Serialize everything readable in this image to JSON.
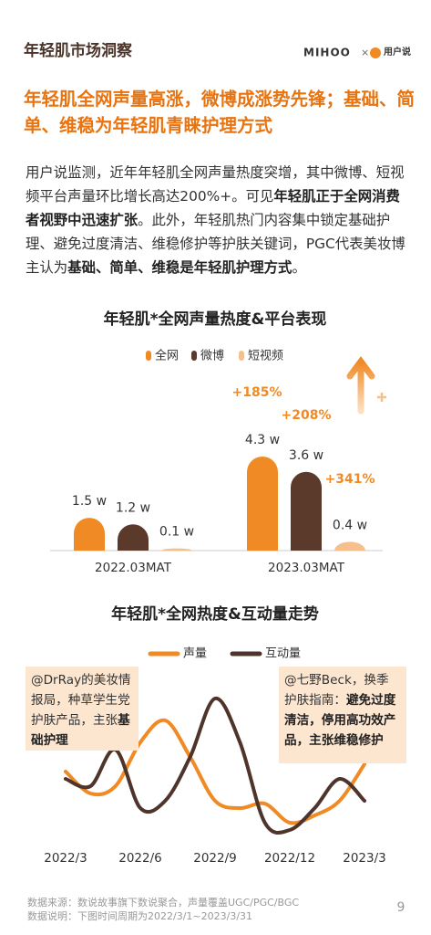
{
  "header": {
    "title": "年轻肌市场洞察",
    "brand": "MIHOO",
    "separator": "×",
    "partner": "用户说"
  },
  "headline": "年轻肌全网声量高涨，微博成涨势先锋；基础、简单、维稳为年轻肌青睐护理方式",
  "body": {
    "segments": [
      {
        "text": "用户说监测，近年年轻肌全网声量热度突增，其中微博、短视频平台声量环比增长高达200%+。可见",
        "bold": false
      },
      {
        "text": "年轻肌正于全网消费者视野中迅速扩张",
        "bold": true
      },
      {
        "text": "。此外，年轻肌热门内容集中锁定基础护理、避免过度清洁、维稳修护等护肤关键词，PGC代表美妆博主认为",
        "bold": false
      },
      {
        "text": "基础、简单、维稳是年轻肌护理方式",
        "bold": true
      },
      {
        "text": "。",
        "bold": false
      }
    ]
  },
  "chart_data": [
    {
      "type": "bar",
      "title": "年轻肌*全网声量热度&平台表现",
      "categories": [
        "2022.03MAT",
        "2023.03MAT"
      ],
      "series": [
        {
          "name": "全网",
          "color": "#f08a24",
          "values": [
            1.5,
            4.3
          ],
          "value_labels": [
            "1.5 w",
            "4.3 w"
          ]
        },
        {
          "name": "微博",
          "color": "#5b3a2c",
          "values": [
            1.2,
            3.6
          ],
          "value_labels": [
            "1.2 w",
            "3.6 w"
          ]
        },
        {
          "name": "短视频",
          "color": "#f6c08c",
          "values": [
            0.1,
            0.4
          ],
          "value_labels": [
            "0.1 w",
            "0.4 w"
          ]
        }
      ],
      "annotations": [
        "+185%",
        "+208%",
        "+341%"
      ],
      "annotation_color": "#f08a24",
      "legend": "top"
    },
    {
      "type": "line",
      "title": "年轻肌*全网热度&互动量走势",
      "x": [
        "2022/3",
        null,
        null,
        "2022/6",
        null,
        null,
        "2022/9",
        null,
        null,
        "2022/12",
        null,
        null,
        "2023/3"
      ],
      "series": [
        {
          "name": "声量",
          "color": "#f08a24",
          "values": [
            50,
            35,
            40,
            70,
            85,
            60,
            30,
            25,
            28,
            15,
            20,
            30,
            55
          ]
        },
        {
          "name": "互动量",
          "color": "#4e342a",
          "values": [
            45,
            40,
            65,
            25,
            30,
            60,
            100,
            70,
            15,
            10,
            25,
            45,
            30
          ]
        }
      ],
      "legend": "top",
      "annotations": [
        {
          "segments": [
            {
              "text": "@DrRay的美妆情报局，种草学生党护肤产品，主张",
              "bold": false
            },
            {
              "text": "基础护理",
              "bold": true
            }
          ]
        },
        {
          "segments": [
            {
              "text": "@七野Beck，换季护肤指南：",
              "bold": false
            },
            {
              "text": "避免过度清洁，停用高功效产品，主张维稳修护",
              "bold": true
            }
          ]
        }
      ]
    }
  ],
  "footer": {
    "lines": [
      "数据来源：数说故事旗下数说聚合，声量覆盖UGC/PGC/BGC",
      "数据说明：下图时间周期为2022/3/1~2023/3/31"
    ],
    "page": "9"
  }
}
